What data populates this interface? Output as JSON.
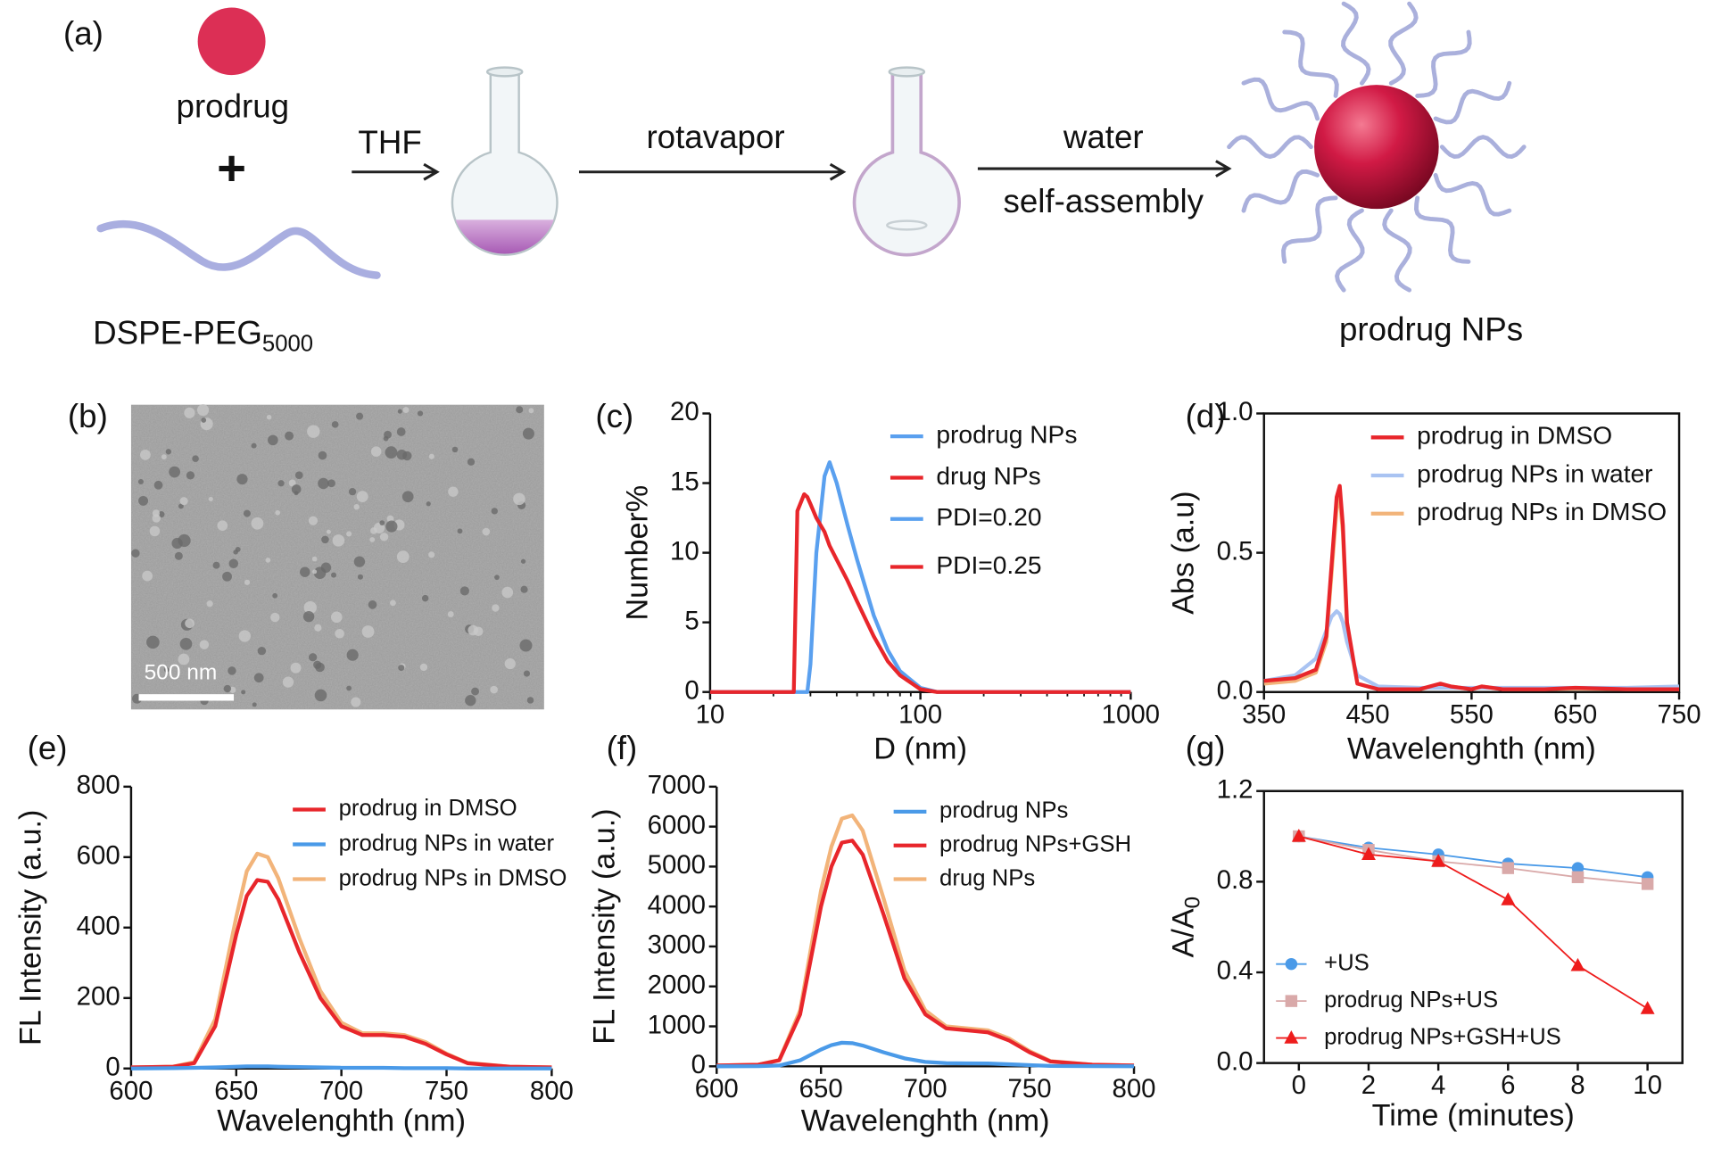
{
  "scheme": {
    "panel": "(a)",
    "prodrug": "prodrug",
    "plus": "+",
    "polymer": "DSPE-PEG",
    "polymer_sub": "5000",
    "step1": "THF",
    "step2": "rotavapor",
    "step3_top": "water",
    "step3_bottom": "self-assembly",
    "product": "prodrug NPs"
  },
  "tem": {
    "panel": "(b)",
    "scale_bar": "500 nm"
  },
  "chart_data": [
    {
      "type": "line",
      "panel": "(c)",
      "xlabel": "D (nm)",
      "ylabel": "Number%",
      "xscale": "log",
      "xlim": [
        10,
        1000
      ],
      "xticks": [
        10,
        100,
        1000
      ],
      "ylim": [
        0,
        20
      ],
      "yticks": [
        0,
        5,
        10,
        15,
        20
      ],
      "x": [
        10,
        24,
        25,
        26,
        28,
        29,
        30,
        32,
        35,
        37,
        40,
        45,
        50,
        60,
        70,
        80,
        100,
        120,
        1000
      ],
      "series": [
        {
          "name": "prodrug NPs",
          "color": "#5aa0ef",
          "values": [
            0,
            0,
            0,
            0,
            0,
            0,
            2,
            10,
            15.5,
            16.5,
            15,
            12,
            9.5,
            5.5,
            3,
            1.5,
            0.3,
            0,
            0
          ]
        },
        {
          "name": "drug NPs",
          "color": "#e8262b",
          "values": [
            0,
            0,
            0,
            13,
            14.2,
            14,
            13.5,
            12.5,
            11.5,
            10.5,
            9.5,
            8,
            6.5,
            4,
            2.2,
            1.2,
            0.2,
            0,
            0
          ]
        }
      ],
      "annotations": [
        {
          "text": "PDI=0.20",
          "color": "#5aa0ef"
        },
        {
          "text": "PDI=0.25",
          "color": "#e8262b"
        }
      ]
    },
    {
      "type": "line",
      "panel": "(d)",
      "xlabel": "Wavelenghth (nm)",
      "ylabel": "Abs (a.u)",
      "xlim": [
        350,
        750
      ],
      "xticks": [
        350,
        450,
        550,
        650,
        750
      ],
      "ylim": [
        0,
        1
      ],
      "yticks": [
        {
          "value": 0,
          "label": "0.0"
        },
        {
          "value": 0.5,
          "label": "0.5"
        },
        {
          "value": 1,
          "label": "1.0"
        }
      ],
      "x": [
        350,
        380,
        400,
        410,
        415,
        420,
        423,
        426,
        430,
        440,
        460,
        500,
        520,
        530,
        550,
        560,
        580,
        620,
        650,
        700,
        750
      ],
      "series": [
        {
          "name": "prodrug NPs in DMSO",
          "color": "#f2b47a",
          "values": [
            0.03,
            0.04,
            0.07,
            0.18,
            0.42,
            0.66,
            0.7,
            0.57,
            0.23,
            0.03,
            0.01,
            0.01,
            0.025,
            0.02,
            0.01,
            0.02,
            0.01,
            0.01,
            0.012,
            0.01,
            0.01
          ]
        },
        {
          "name": "prodrug NPs in water",
          "color": "#a9c3f2",
          "values": [
            0.04,
            0.06,
            0.12,
            0.22,
            0.27,
            0.29,
            0.28,
            0.25,
            0.18,
            0.06,
            0.02,
            0.015,
            0.015,
            0.015,
            0.015,
            0.015,
            0.015,
            0.015,
            0.015,
            0.015,
            0.02
          ]
        },
        {
          "name": "prodrug in DMSO",
          "color": "#e8262b",
          "values": [
            0.04,
            0.05,
            0.08,
            0.2,
            0.45,
            0.7,
            0.74,
            0.6,
            0.25,
            0.03,
            0.01,
            0.01,
            0.03,
            0.02,
            0.01,
            0.02,
            0.01,
            0.01,
            0.015,
            0.01,
            0.01
          ]
        }
      ],
      "legend_order": [
        2,
        1,
        0
      ]
    },
    {
      "type": "line",
      "panel": "(e)",
      "xlabel": "Wavelenghth (nm)",
      "ylabel": "FL Intensity (a.u.)",
      "xlim": [
        600,
        800
      ],
      "xticks": [
        600,
        650,
        700,
        750,
        800
      ],
      "ylim": [
        0,
        800
      ],
      "yticks": [
        0,
        200,
        400,
        600,
        800
      ],
      "x": [
        600,
        620,
        630,
        640,
        650,
        655,
        660,
        665,
        670,
        680,
        690,
        700,
        710,
        720,
        730,
        740,
        750,
        760,
        780,
        800
      ],
      "series": [
        {
          "name": "prodrug NPs in DMSO",
          "color": "#f2b47a",
          "values": [
            3,
            5,
            18,
            140,
            430,
            560,
            610,
            600,
            540,
            370,
            220,
            130,
            100,
            100,
            95,
            75,
            42,
            16,
            5,
            3
          ]
        },
        {
          "name": "prodrug in DMSO",
          "color": "#e8262b",
          "values": [
            3,
            5,
            15,
            120,
            380,
            490,
            535,
            530,
            480,
            330,
            200,
            120,
            95,
            95,
            90,
            70,
            40,
            15,
            5,
            3
          ]
        },
        {
          "name": "prodrug NPs in water",
          "color": "#4a9ae8",
          "values": [
            0,
            1,
            2,
            3,
            5,
            6,
            6,
            6,
            5,
            4,
            3,
            2,
            2,
            2,
            1,
            1,
            1,
            0,
            0,
            0
          ]
        }
      ],
      "legend_order": [
        1,
        2,
        0
      ]
    },
    {
      "type": "line",
      "panel": "(f)",
      "xlabel": "Wavelenghth (nm)",
      "ylabel": "FL Intensity (a.u.)",
      "xlim": [
        600,
        800
      ],
      "xticks": [
        600,
        650,
        700,
        750,
        800
      ],
      "ylim": [
        0,
        7000
      ],
      "yticks": [
        0,
        1000,
        2000,
        3000,
        4000,
        5000,
        6000,
        7000
      ],
      "x": [
        600,
        620,
        630,
        640,
        650,
        655,
        660,
        665,
        670,
        680,
        690,
        700,
        710,
        720,
        730,
        740,
        750,
        760,
        780,
        800
      ],
      "series": [
        {
          "name": "drug NPs",
          "color": "#f2b47a",
          "values": [
            20,
            40,
            160,
            1400,
            4400,
            5500,
            6200,
            6280,
            5900,
            4200,
            2400,
            1400,
            1000,
            950,
            900,
            700,
            380,
            130,
            40,
            20
          ]
        },
        {
          "name": "prodrug NPs+GSH",
          "color": "#e8262b",
          "values": [
            20,
            40,
            150,
            1300,
            4000,
            5000,
            5600,
            5650,
            5300,
            3800,
            2200,
            1300,
            950,
            900,
            850,
            650,
            350,
            120,
            40,
            20
          ]
        },
        {
          "name": "prodrug NPs",
          "color": "#4a9ae8",
          "values": [
            0,
            5,
            20,
            150,
            420,
            530,
            590,
            580,
            520,
            350,
            200,
            110,
            80,
            75,
            70,
            50,
            30,
            10,
            3,
            0
          ]
        }
      ],
      "legend_order": [
        2,
        1,
        0
      ]
    },
    {
      "type": "line-marker",
      "panel": "(g)",
      "xlabel": "Time (minutes)",
      "ylabel": "A/A",
      "ylabel_sub": "0",
      "xlim": [
        -1,
        11
      ],
      "xticks": [
        0,
        2,
        4,
        6,
        8,
        10
      ],
      "ylim": [
        0,
        1.2
      ],
      "yticks": [
        {
          "value": 0,
          "label": "0.0"
        },
        {
          "value": 0.4,
          "label": "0.4"
        },
        {
          "value": 0.8,
          "label": "0.8"
        },
        {
          "value": 1.2,
          "label": "1.2"
        }
      ],
      "x": [
        0,
        2,
        4,
        6,
        8,
        10
      ],
      "series": [
        {
          "name": "+US",
          "color": "#4a9ae8",
          "marker": "circle",
          "values": [
            1,
            0.95,
            0.92,
            0.88,
            0.86,
            0.82
          ]
        },
        {
          "name": "prodrug NPs+US",
          "color": "#d9a9a9",
          "marker": "square",
          "values": [
            1,
            0.94,
            0.89,
            0.86,
            0.82,
            0.79
          ]
        },
        {
          "name": "prodrug NPs+GSH+US",
          "color": "#ee1c1c",
          "marker": "triangle",
          "values": [
            1,
            0.92,
            0.89,
            0.72,
            0.43,
            0.24
          ]
        }
      ]
    }
  ]
}
